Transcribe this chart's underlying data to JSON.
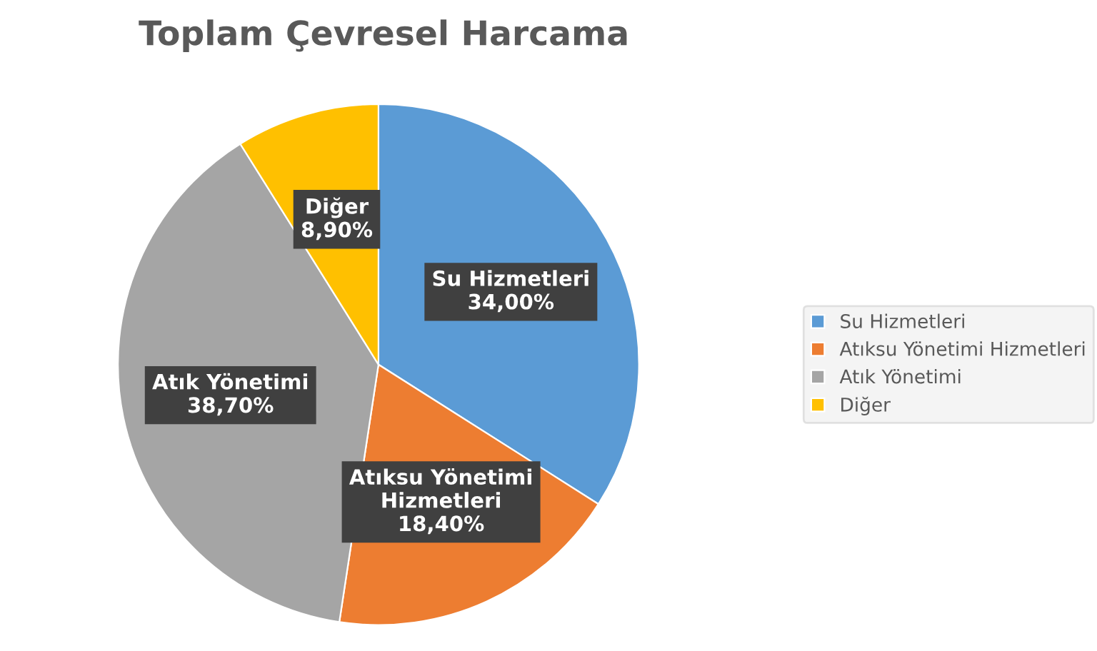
{
  "chart_data": {
    "type": "pie",
    "title": "Toplam Çevresel Harcama",
    "categories": [
      "Su Hizmetleri",
      "Atıksu Yönetimi Hizmetleri",
      "Atık Yönetimi",
      "Diğer"
    ],
    "values": [
      34.0,
      18.4,
      38.7,
      8.9
    ],
    "colors": [
      "#5b9bd5",
      "#ed7d31",
      "#a5a5a5",
      "#ffc000"
    ],
    "value_labels": [
      "34,00%",
      "18,40%",
      "38,70%",
      "8,90%"
    ],
    "legend": "right"
  }
}
